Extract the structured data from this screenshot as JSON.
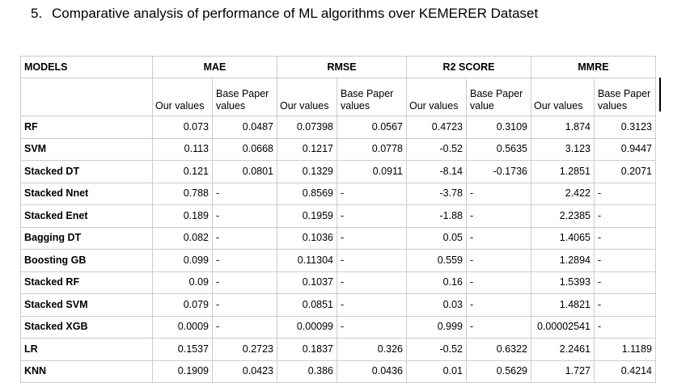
{
  "heading": {
    "number": "5.",
    "text": "Comparative analysis of performance of ML algorithms over KEMERER Dataset"
  },
  "table": {
    "models_header": "MODELS",
    "metrics": [
      "MAE",
      "RMSE",
      "R2 SCORE",
      "MMRE"
    ],
    "sub_headers": [
      {
        "ours": "Our values",
        "base_line1": "Base Paper",
        "base_line2": "values"
      },
      {
        "ours": "Our values",
        "base_line1": "Base Paper",
        "base_line2": "values"
      },
      {
        "ours": "Our values",
        "base_line1": "Base Paper",
        "base_line2": "value"
      },
      {
        "ours": "Our values",
        "base_line1": "Base Paper",
        "base_line2": "values"
      }
    ],
    "rows": [
      {
        "model": "RF",
        "cells": [
          {
            "ours": "0.073",
            "base": "0.0487"
          },
          {
            "ours": "0.07398",
            "base": "0.0567"
          },
          {
            "ours": "0.4723",
            "base": "0.3109"
          },
          {
            "ours": "1.874",
            "base": "0.3123"
          }
        ]
      },
      {
        "model": "SVM",
        "cells": [
          {
            "ours": "0.113",
            "base": "0.0668"
          },
          {
            "ours": "0.1217",
            "base": "0.0778"
          },
          {
            "ours": "-0.52",
            "base": "0.5635"
          },
          {
            "ours": "3.123",
            "base": "0.9447"
          }
        ]
      },
      {
        "model": "Stacked DT",
        "cells": [
          {
            "ours": "0.121",
            "base": "0.0801"
          },
          {
            "ours": "0.1329",
            "base": "0.0911"
          },
          {
            "ours": "-8.14",
            "base": "-0.1736"
          },
          {
            "ours": "1.2851",
            "base": "0.2071"
          }
        ]
      },
      {
        "model": "Stacked Nnet",
        "cells": [
          {
            "ours": "0.788",
            "base": "-"
          },
          {
            "ours": "0.8569",
            "base": "-"
          },
          {
            "ours": "-3.78",
            "base": "-"
          },
          {
            "ours": "2.422",
            "base": "-"
          }
        ]
      },
      {
        "model": "Stacked Enet",
        "cells": [
          {
            "ours": "0.189",
            "base": "-"
          },
          {
            "ours": "0.1959",
            "base": "-"
          },
          {
            "ours": "-1.88",
            "base": "-"
          },
          {
            "ours": "2.2385",
            "base": "-"
          }
        ]
      },
      {
        "model": "Bagging DT",
        "cells": [
          {
            "ours": "0.082",
            "base": "-"
          },
          {
            "ours": "0.1036",
            "base": "-"
          },
          {
            "ours": "0.05",
            "base": "-"
          },
          {
            "ours": "1.4065",
            "base": "-"
          }
        ]
      },
      {
        "model": "Boosting GB",
        "cells": [
          {
            "ours": "0.099",
            "base": "-"
          },
          {
            "ours": "0.11304",
            "base": "-"
          },
          {
            "ours": "0.559",
            "base": "-"
          },
          {
            "ours": "1.2894",
            "base": "-"
          }
        ]
      },
      {
        "model": "Stacked RF",
        "cells": [
          {
            "ours": "0.09",
            "base": "-"
          },
          {
            "ours": "0.1037",
            "base": "-"
          },
          {
            "ours": "0.16",
            "base": "-"
          },
          {
            "ours": "1.5393",
            "base": "-"
          }
        ]
      },
      {
        "model": "Stacked SVM",
        "cells": [
          {
            "ours": "0.079",
            "base": "-"
          },
          {
            "ours": "0.0851",
            "base": "-"
          },
          {
            "ours": "0.03",
            "base": "-"
          },
          {
            "ours": "1.4821",
            "base": "-"
          }
        ]
      },
      {
        "model": "Stacked XGB",
        "cells": [
          {
            "ours": "0.0009",
            "base": "-"
          },
          {
            "ours": "0.00099",
            "base": "-"
          },
          {
            "ours": "0.999",
            "base": "-"
          },
          {
            "ours": "0.00002541",
            "base": "-"
          }
        ]
      },
      {
        "model": "LR",
        "cells": [
          {
            "ours": "0.1537",
            "base": "0.2723"
          },
          {
            "ours": "0.1837",
            "base": "0.326"
          },
          {
            "ours": "-0.52",
            "base": "0.6322"
          },
          {
            "ours": "2.2461",
            "base": "1.1189"
          }
        ]
      },
      {
        "model": "KNN",
        "cells": [
          {
            "ours": "0.1909",
            "base": "0.0423"
          },
          {
            "ours": "0.386",
            "base": "0.0436"
          },
          {
            "ours": "0.01",
            "base": "0.5629"
          },
          {
            "ours": "1.727",
            "base": "0.4214"
          }
        ]
      }
    ]
  }
}
